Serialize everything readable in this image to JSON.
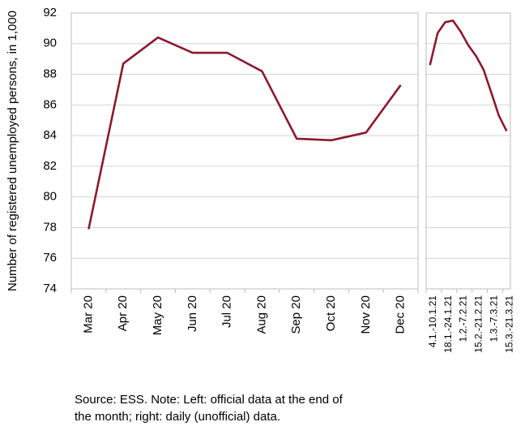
{
  "chart_data": [
    {
      "type": "line",
      "y_label": "Number of registered unemployed persons, in 1,000",
      "categories": [
        "Mar 20",
        "Apr 20",
        "May 20",
        "Jun 20",
        "Jul 20",
        "Aug 20",
        "Sep 20",
        "Oct 20",
        "Nov 20",
        "Dec 20"
      ],
      "values": [
        77.9,
        88.7,
        90.4,
        89.4,
        89.4,
        88.2,
        83.8,
        83.7,
        84.2,
        87.3
      ],
      "color": "#8b1a2e",
      "ylim": [
        74,
        92
      ],
      "yticks": [
        74,
        76,
        78,
        80,
        82,
        84,
        86,
        88,
        90,
        92
      ],
      "grid": true
    },
    {
      "type": "line",
      "categories": [
        "4.1.-10.1.21",
        null,
        "18.1.-24.1.21",
        null,
        "1.2.-7.2.21",
        null,
        "15.2.-21.2.21",
        null,
        "1.3.-7.3.21",
        null,
        "15.3.-21.3.21"
      ],
      "values": [
        88.6,
        90.7,
        91.4,
        91.5,
        90.8,
        89.9,
        89.2,
        88.3,
        86.8,
        85.3,
        84.3
      ],
      "color": "#8b1a2e",
      "ylim": [
        74,
        92
      ],
      "yticks": [
        74,
        76,
        78,
        80,
        82,
        84,
        86,
        88,
        90,
        92
      ],
      "grid": true
    }
  ],
  "note": [
    "Source: ESS. Note: Left: official data at the end of",
    "the month; right: daily (unofficial) data."
  ]
}
